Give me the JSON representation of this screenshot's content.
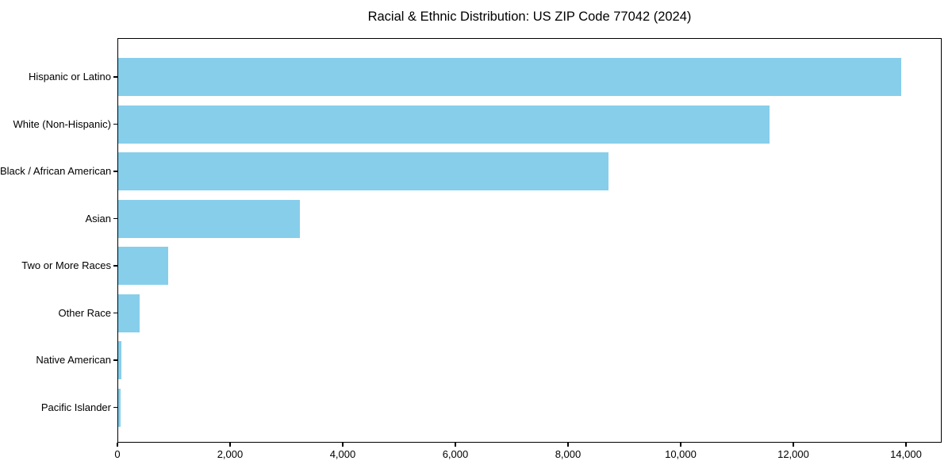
{
  "chart_data": {
    "type": "bar",
    "orientation": "horizontal",
    "title": "Racial & Ethnic Distribution: US ZIP Code 77042 (2024)",
    "categories": [
      "Hispanic or Latino",
      "White (Non-Hispanic)",
      "Black / African American",
      "Asian",
      "Two or More Races",
      "Other Race",
      "Native American",
      "Pacific Islander"
    ],
    "values": [
      13900,
      11560,
      8710,
      3220,
      890,
      380,
      50,
      40
    ],
    "xlabel": "",
    "ylabel": "",
    "xlim": [
      0,
      14634
    ],
    "x_ticks": [
      0,
      2000,
      4000,
      6000,
      8000,
      10000,
      12000,
      14000
    ],
    "x_tick_labels": [
      "0",
      "2,000",
      "4,000",
      "6,000",
      "8,000",
      "10,000",
      "12,000",
      "14,000"
    ],
    "bar_color": "#87CEEB",
    "spine_color": "#000000",
    "text_color": "#000000",
    "grid": false,
    "legend": null
  }
}
